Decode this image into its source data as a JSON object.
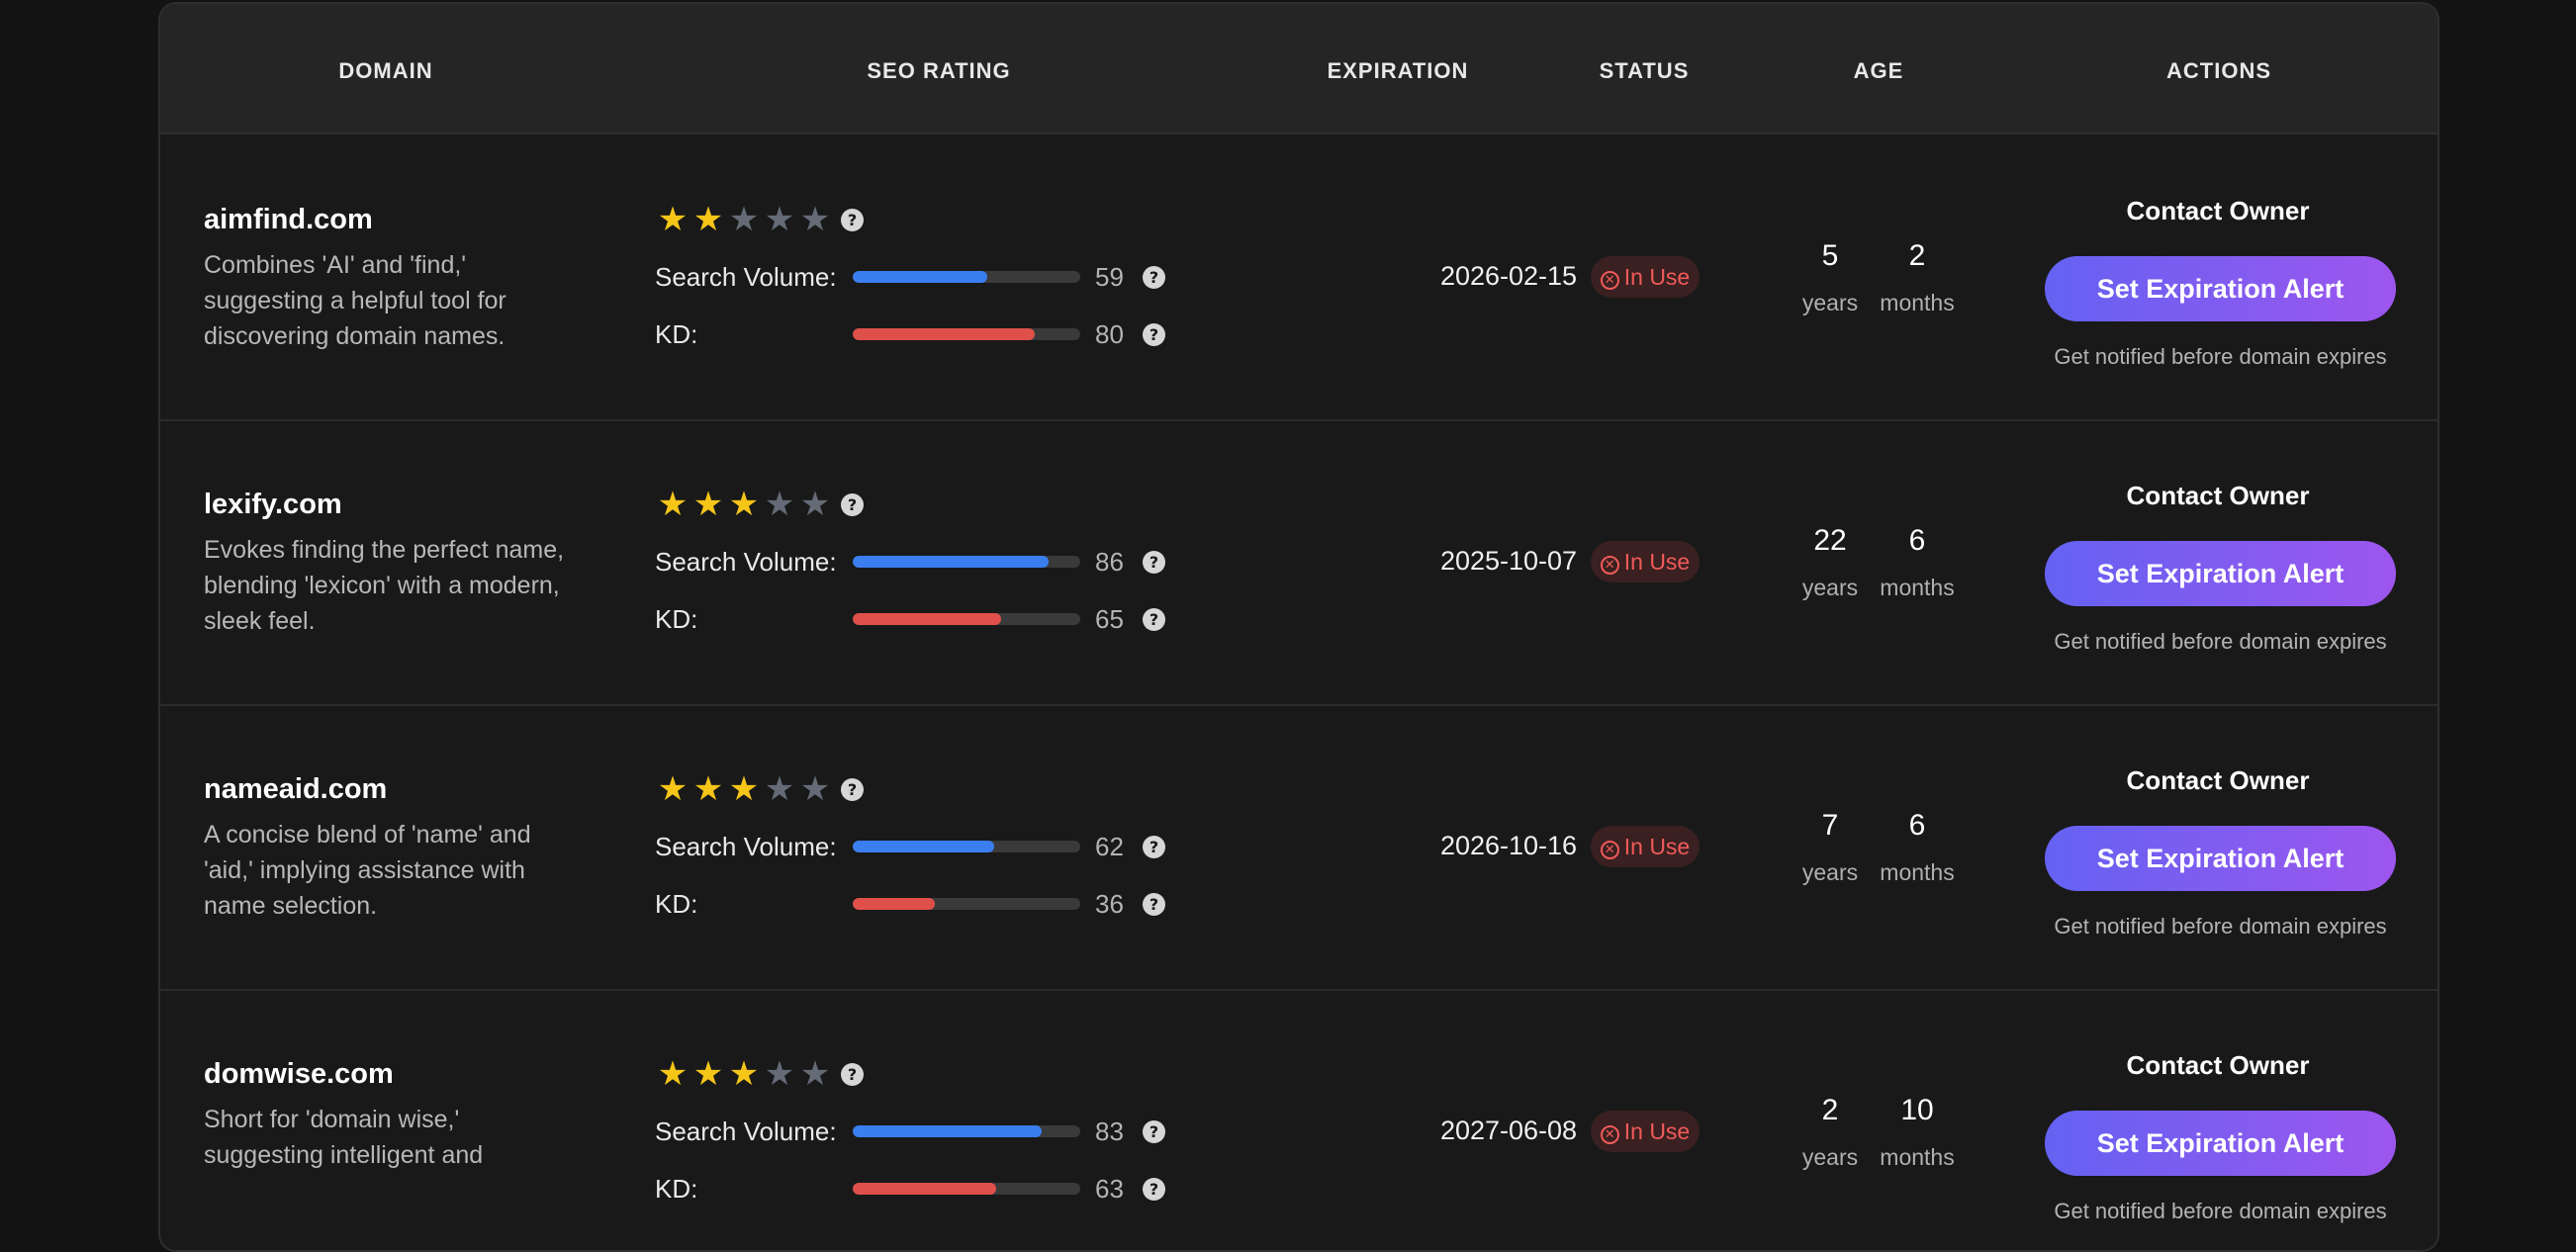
{
  "header": {
    "domain": "DOMAIN",
    "seo_rating": "SEO RATING",
    "expiration": "EXPIRATION",
    "status": "STATUS",
    "age": "AGE",
    "actions": "ACTIONS"
  },
  "labels": {
    "search_volume": "Search Volume:",
    "kd": "KD:",
    "years": "years",
    "months": "months",
    "contact_owner": "Contact Owner",
    "set_alert": "Set Expiration Alert",
    "notify": "Get notified before domain expires",
    "status_icon": "✕"
  },
  "colors": {
    "star_on": "#f5c518",
    "star_off": "#646b77",
    "search_bar": "#3b7ef0",
    "kd_bar": "#e0504a",
    "status_text": "#f05a5a",
    "button_gradient_start": "#6462f2",
    "button_gradient_end": "#9d56ee"
  },
  "icons": {
    "star": "star-icon",
    "help": "question-circle-icon",
    "status": "x-circle-icon"
  },
  "rows": [
    {
      "domain": "aimfind.com",
      "description": "Combines 'AI' and 'find,' suggesting a helpful tool for discovering domain names.",
      "stars": 2,
      "max_stars": 5,
      "search_volume": "59",
      "kd": "80",
      "expiration": "2026-02-15",
      "status": "In Use",
      "age_years": "5",
      "age_months": "2"
    },
    {
      "domain": "lexify.com",
      "description": "Evokes finding the perfect name, blending 'lexicon' with a modern, sleek feel.",
      "stars": 3,
      "max_stars": 5,
      "search_volume": "86",
      "kd": "65",
      "expiration": "2025-10-07",
      "status": "In Use",
      "age_years": "22",
      "age_months": "6"
    },
    {
      "domain": "nameaid.com",
      "description": "A concise blend of 'name' and 'aid,' implying assistance with name selection.",
      "stars": 3,
      "max_stars": 5,
      "search_volume": "62",
      "kd": "36",
      "expiration": "2026-10-16",
      "status": "In Use",
      "age_years": "7",
      "age_months": "6"
    },
    {
      "domain": "domwise.com",
      "description": "Short for 'domain wise,' suggesting intelligent and",
      "stars": 3,
      "max_stars": 5,
      "search_volume": "83",
      "kd": "63",
      "expiration": "2027-06-08",
      "status": "In Use",
      "age_years": "2",
      "age_months": "10"
    }
  ]
}
